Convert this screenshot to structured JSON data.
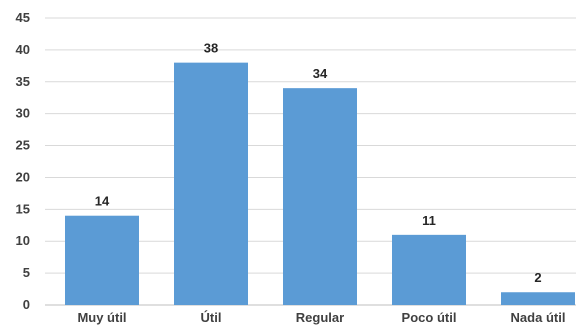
{
  "chart_data": {
    "type": "bar",
    "categories": [
      "Muy útil",
      "Útil",
      "Regular",
      "Poco útil",
      "Nada útil"
    ],
    "values": [
      14,
      38,
      34,
      11,
      2
    ],
    "ylim": [
      0,
      45
    ],
    "yticks": [
      0,
      5,
      10,
      15,
      20,
      25,
      30,
      35,
      40,
      45
    ],
    "grid": true,
    "bar_color": "#5b9bd5",
    "data_labels": true,
    "title": "",
    "xlabel": "",
    "ylabel": ""
  }
}
